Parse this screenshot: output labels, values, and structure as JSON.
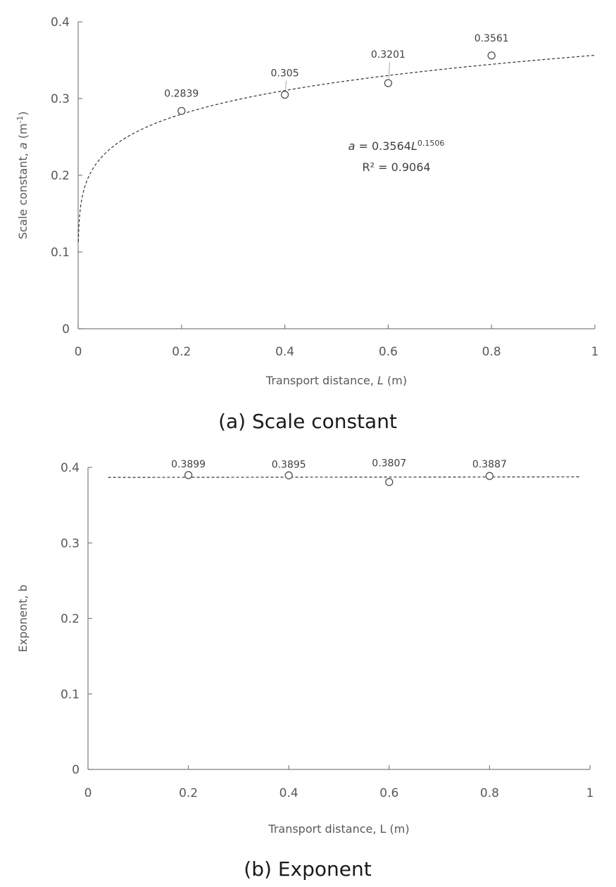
{
  "chart_data": [
    {
      "type": "scatter",
      "caption": "(a) Scale constant",
      "xlabel_parts": [
        "Transport distance, ",
        "L",
        " (m)"
      ],
      "ylabel_parts": [
        "Scale  constant, ",
        "a",
        " (m",
        "-1",
        ")"
      ],
      "xlim": [
        0,
        1
      ],
      "ylim": [
        0,
        0.4
      ],
      "xticks": [
        "0",
        "0.2",
        "0.4",
        "0.6",
        "0.8",
        "1"
      ],
      "yticks": [
        "0",
        "0.1",
        "0.2",
        "0.3",
        "0.4"
      ],
      "series": [
        {
          "x": [
            0.2,
            0.4,
            0.6,
            0.8
          ],
          "y": [
            0.2839,
            0.305,
            0.3201,
            0.3561
          ]
        }
      ],
      "data_labels": [
        "0.2839",
        "0.305",
        "0.3201",
        "0.3561"
      ],
      "trendline": {
        "kind": "power",
        "coef": 0.3564,
        "exp": 0.1506
      },
      "equation_parts": [
        "a",
        " = 0.3564",
        "L",
        "0.1506"
      ],
      "r2_text": "R² = 0.9064"
    },
    {
      "type": "scatter",
      "caption": "(b) Exponent",
      "xlabel_parts": [
        "Transport distance, L (m)"
      ],
      "ylabel_parts": [
        "Exponent, b"
      ],
      "xlim": [
        0,
        1
      ],
      "ylim": [
        0,
        0.4
      ],
      "xticks": [
        "0",
        "0.2",
        "0.4",
        "0.6",
        "0.8",
        "1"
      ],
      "yticks": [
        "0",
        "0.1",
        "0.2",
        "0.3",
        "0.4"
      ],
      "series": [
        {
          "x": [
            0.2,
            0.4,
            0.6,
            0.8
          ],
          "y": [
            0.3899,
            0.3895,
            0.3807,
            0.3887
          ]
        }
      ],
      "data_labels": [
        "0.3899",
        "0.3895",
        "0.3807",
        "0.3887"
      ],
      "trendline": {
        "kind": "linear",
        "x0": 0.04,
        "x1": 0.98,
        "y0": 0.3868,
        "y1": 0.3875
      }
    }
  ]
}
